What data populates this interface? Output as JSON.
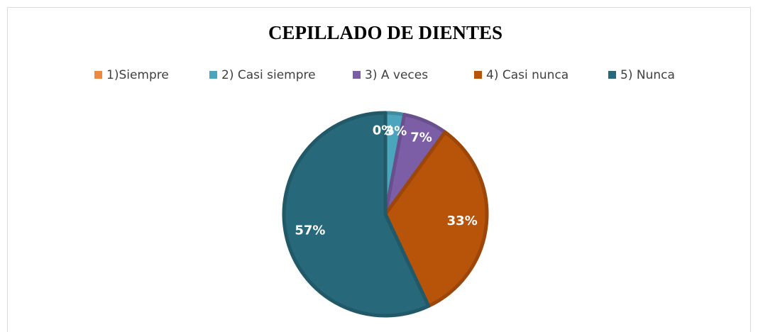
{
  "chart_data": {
    "type": "pie",
    "title": "CEPILLADO DE DIENTES",
    "categories": [
      "1)Siempre",
      "2) Casi siempre",
      "3) A veces",
      "4) Casi nunca",
      "5) Nunca"
    ],
    "values": [
      0,
      3,
      7,
      33,
      57
    ],
    "value_labels": [
      "0%",
      "3%",
      "7%",
      "33%",
      "57%"
    ],
    "colors": [
      "#ed8a3f",
      "#4aa5bd",
      "#7b5ea6",
      "#b8540a",
      "#27697a"
    ],
    "legend": "top"
  }
}
